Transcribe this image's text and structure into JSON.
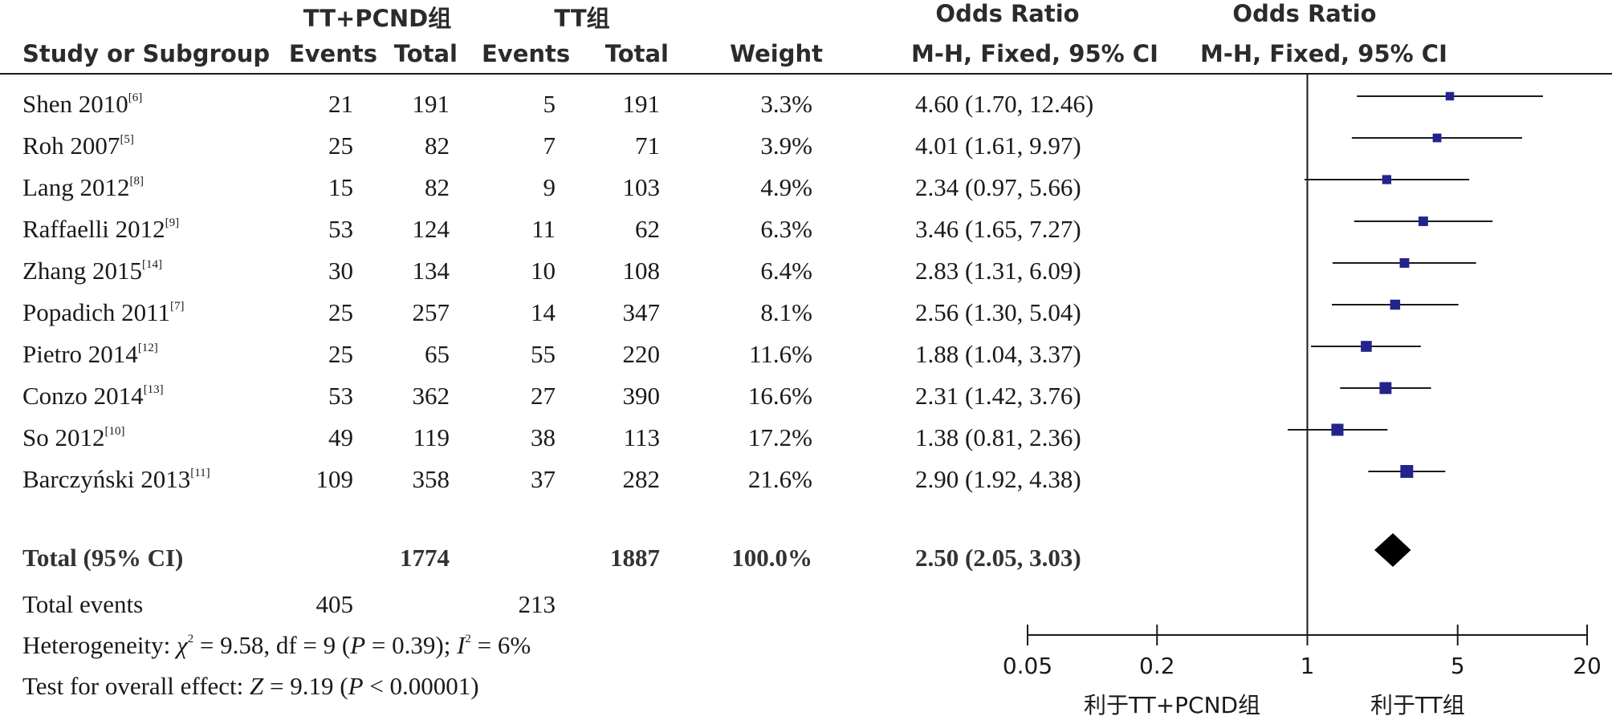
{
  "header": {
    "group1": "TT+PCND组",
    "group2": "TT组",
    "or_effect_label": "Odds Ratio",
    "or_plot_label": "Odds Ratio",
    "study_col": "Study or Subgroup",
    "events1": "Events",
    "total1": "Total",
    "events2": "Events",
    "total2": "Total",
    "weight": "Weight",
    "method_effect": "M-H, Fixed, 95% CI",
    "method_plot": "M-H, Fixed, 95% CI"
  },
  "studies": [
    {
      "name": "Shen 2010",
      "ref": "[6]",
      "e1": "21",
      "t1": "191",
      "e2": "5",
      "t2": "191",
      "weight": "3.3%",
      "ci_text": "4.60 (1.70, 12.46)"
    },
    {
      "name": "Roh 2007",
      "ref": "[5]",
      "e1": "25",
      "t1": "82",
      "e2": "7",
      "t2": "71",
      "weight": "3.9%",
      "ci_text": "4.01 (1.61, 9.97)"
    },
    {
      "name": "Lang 2012",
      "ref": "[8]",
      "e1": "15",
      "t1": "82",
      "e2": "9",
      "t2": "103",
      "weight": "4.9%",
      "ci_text": "2.34 (0.97, 5.66)"
    },
    {
      "name": "Raffaelli 2012",
      "ref": "[9]",
      "e1": "53",
      "t1": "124",
      "e2": "11",
      "t2": "62",
      "weight": "6.3%",
      "ci_text": "3.46 (1.65, 7.27)"
    },
    {
      "name": "Zhang 2015",
      "ref": "[14]",
      "e1": "30",
      "t1": "134",
      "e2": "10",
      "t2": "108",
      "weight": "6.4%",
      "ci_text": "2.83 (1.31, 6.09)"
    },
    {
      "name": "Popadich 2011",
      "ref": "[7]",
      "e1": "25",
      "t1": "257",
      "e2": "14",
      "t2": "347",
      "weight": "8.1%",
      "ci_text": "2.56 (1.30, 5.04)"
    },
    {
      "name": "Pietro 2014",
      "ref": "[12]",
      "e1": "25",
      "t1": "65",
      "e2": "55",
      "t2": "220",
      "weight": "11.6%",
      "ci_text": "1.88 (1.04, 3.37)"
    },
    {
      "name": "Conzo 2014",
      "ref": "[13]",
      "e1": "53",
      "t1": "362",
      "e2": "27",
      "t2": "390",
      "weight": "16.6%",
      "ci_text": "2.31 (1.42, 3.76)"
    },
    {
      "name": "So 2012",
      "ref": "[10]",
      "e1": "49",
      "t1": "119",
      "e2": "38",
      "t2": "113",
      "weight": "17.2%",
      "ci_text": "1.38 (0.81, 2.36)"
    },
    {
      "name": "Barczyński 2013",
      "ref": "[11]",
      "e1": "109",
      "t1": "358",
      "e2": "37",
      "t2": "282",
      "weight": "21.6%",
      "ci_text": "2.90 (1.92, 4.38)"
    }
  ],
  "total": {
    "label": "Total (95% CI)",
    "t1": "1774",
    "t2": "1887",
    "weight": "100.0%",
    "ci_text": "2.50 (2.05, 3.03)"
  },
  "total_events": {
    "label": "Total events",
    "e1": "405",
    "e2": "213"
  },
  "heterogeneity": {
    "prefix": "Heterogeneity: ",
    "chi": "χ",
    "rest": " = 9.58, df = 9 (",
    "p": "P",
    "p_rest": " = 0.39); ",
    "i": "I",
    "i_rest": " = 6%"
  },
  "overall_effect": {
    "prefix": "Test for overall effect: ",
    "z": "Z",
    "z_rest": " = 9.19 (",
    "p": "P",
    "p_rest": " < 0.00001)"
  },
  "axis": {
    "ticks": [
      {
        "value": 0.05,
        "label": "0.05"
      },
      {
        "value": 0.2,
        "label": "0.2"
      },
      {
        "value": 1,
        "label": "1"
      },
      {
        "value": 5,
        "label": "5"
      },
      {
        "value": 20,
        "label": "20"
      }
    ],
    "favours_left": "利于TT+PCND组",
    "favours_right": "利于TT组"
  },
  "chart_data": {
    "type": "forest",
    "scale": "log",
    "xlim": [
      0.05,
      20
    ],
    "reference_line": 1,
    "marker_color": "#23238e",
    "studies": [
      {
        "name": "Shen 2010",
        "or": 4.6,
        "lo": 1.7,
        "hi": 12.46,
        "weight": 3.3
      },
      {
        "name": "Roh 2007",
        "or": 4.01,
        "lo": 1.61,
        "hi": 9.97,
        "weight": 3.9
      },
      {
        "name": "Lang 2012",
        "or": 2.34,
        "lo": 0.97,
        "hi": 5.66,
        "weight": 4.9
      },
      {
        "name": "Raffaelli 2012",
        "or": 3.46,
        "lo": 1.65,
        "hi": 7.27,
        "weight": 6.3
      },
      {
        "name": "Zhang 2015",
        "or": 2.83,
        "lo": 1.31,
        "hi": 6.09,
        "weight": 6.4
      },
      {
        "name": "Popadich 2011",
        "or": 2.56,
        "lo": 1.3,
        "hi": 5.04,
        "weight": 8.1
      },
      {
        "name": "Pietro 2014",
        "or": 1.88,
        "lo": 1.04,
        "hi": 3.37,
        "weight": 11.6
      },
      {
        "name": "Conzo 2014",
        "or": 2.31,
        "lo": 1.42,
        "hi": 3.76,
        "weight": 16.6
      },
      {
        "name": "So 2012",
        "or": 1.38,
        "lo": 0.81,
        "hi": 2.36,
        "weight": 17.2
      },
      {
        "name": "Barczyński 2013",
        "or": 2.9,
        "lo": 1.92,
        "hi": 4.38,
        "weight": 21.6
      }
    ],
    "total": {
      "or": 2.5,
      "lo": 2.05,
      "hi": 3.03
    }
  }
}
